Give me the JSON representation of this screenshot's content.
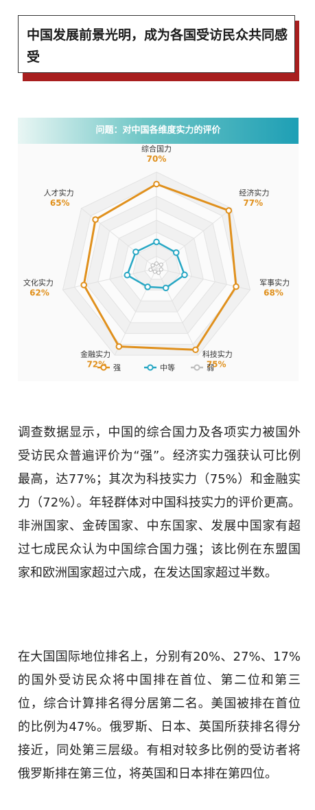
{
  "header": {
    "title": "中国发展前景光明，成为各国受访民众共同感受"
  },
  "chart_data": {
    "type": "radar",
    "title": "问题：对中国各维度实力的评价",
    "axes": [
      "综合国力",
      "经济实力",
      "军事实力",
      "科技实力",
      "金融实力",
      "文化实力",
      "人才实力"
    ],
    "rlim": [
      0,
      80
    ],
    "series": [
      {
        "name": "强",
        "color": "#e0901c",
        "values": [
          70,
          77,
          68,
          75,
          72,
          62,
          65
        ]
      },
      {
        "name": "中等",
        "color": "#27a7c4",
        "values": [
          22,
          21,
          24,
          18,
          17,
          25,
          22
        ]
      },
      {
        "name": "弱",
        "color": "#bdbdbd",
        "values": [
          4,
          5,
          4,
          4,
          3,
          5,
          4
        ]
      }
    ],
    "data_labels_series": "强",
    "legend_position": "bottom-left"
  },
  "body": {
    "paragraph1": "调查数据显示，中国的综合国力及各项实力被国外受访民众普遍评价为“强”。经济实力强获认可比例最高，达77%；其次为科技实力（75%）和金融实力（72%）。年轻群体对中国科技实力的评价更高。非洲国家、金砖国家、中东国家、发展中国家有超过七成民众认为中国综合国力强；该比例在东盟国家和欧洲国家超过六成，在发达国家超过半数。",
    "paragraph2": "在大国国际地位排名上，分别有20%、27%、17%的国外受访民众将中国排在首位、第二位和第三位，综合计算排名得分居第二名。美国被排在首位的比例为47%。俄罗斯、日本、英国所获排名得分接近，同处第三层级。有相对较多比例的受访者将俄罗斯排在第三位，将英国和日本排在第四位。"
  }
}
